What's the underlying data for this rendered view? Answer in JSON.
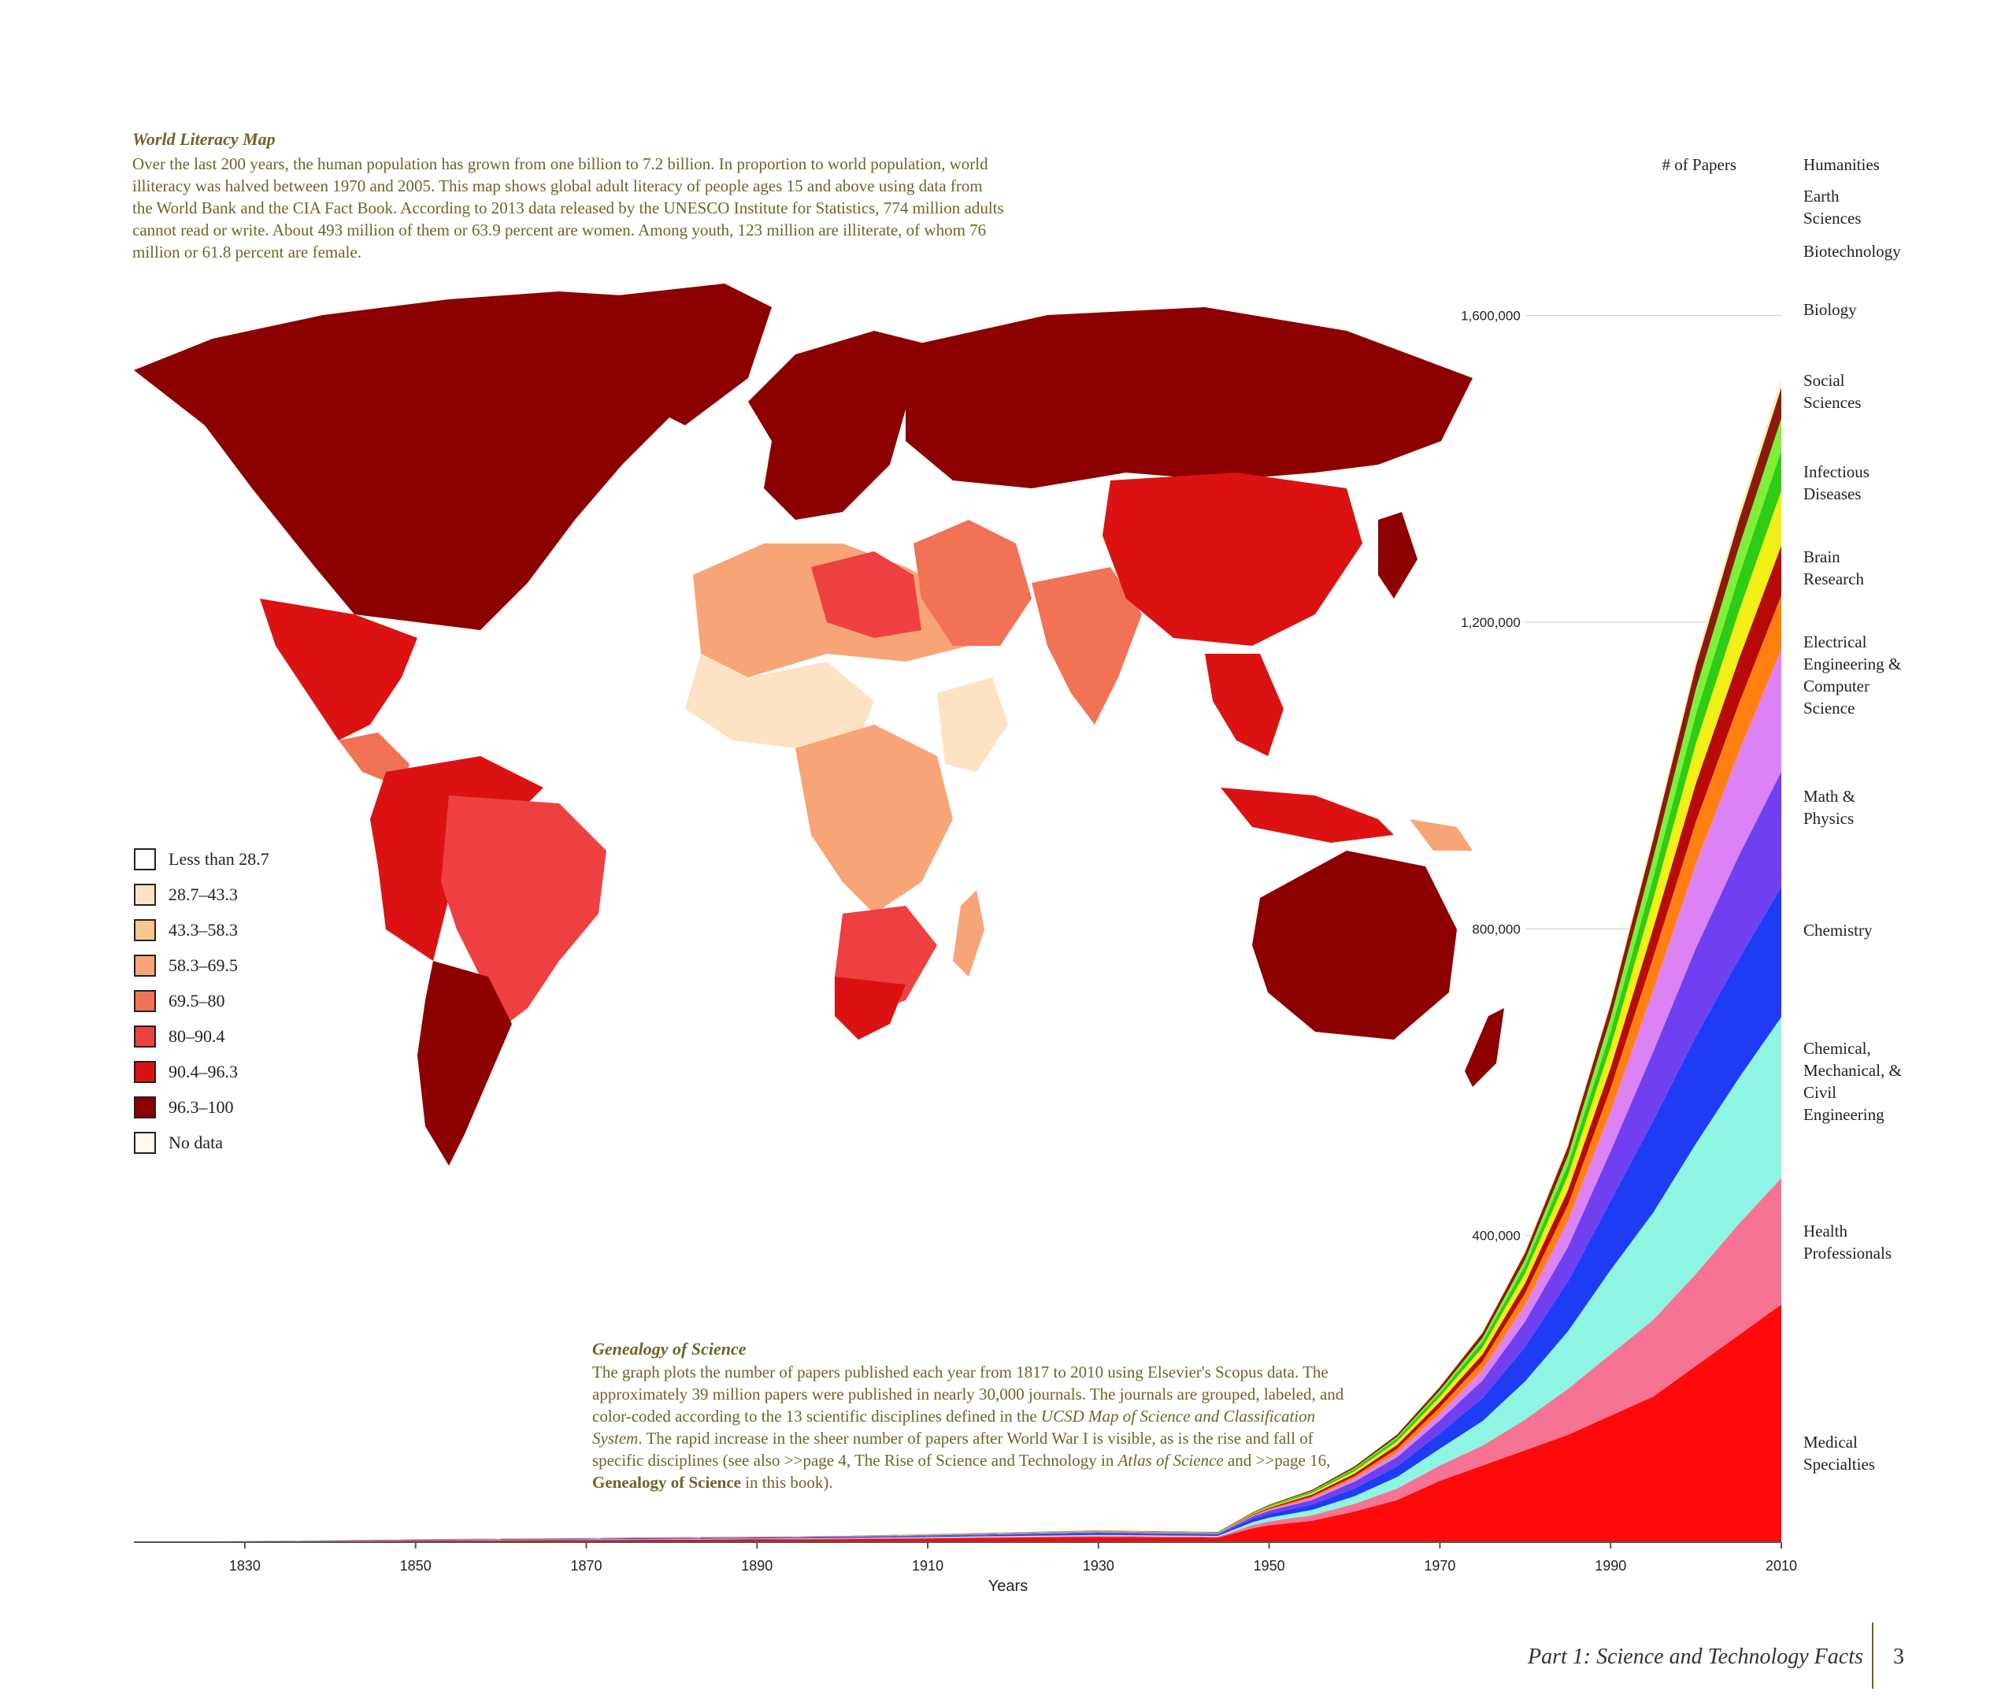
{
  "map": {
    "title": "World Literacy Map",
    "description": "Over the last 200 years, the human population has grown from one billion to 7.2 billion. In proportion to world population, world illiteracy was halved between 1970 and 2005. This map shows global adult literacy of people ages 15 and above using data from the World Bank and the CIA Fact Book. According to 2013 data released by the UNESCO Institute for Statistics, 774 million adults cannot read or write. About 493 million of them or 63.9 percent are women. Among youth, 123 million are illiterate, of whom 76 million or 61.8 percent are female.",
    "legend": [
      {
        "label": "Less than 28.7",
        "color": "#ffffff"
      },
      {
        "label": "28.7–43.3",
        "color": "#fde3c3"
      },
      {
        "label": "43.3–58.3",
        "color": "#fbc58f"
      },
      {
        "label": "58.3–69.5",
        "color": "#f7a476"
      },
      {
        "label": "69.5–80",
        "color": "#f27255"
      },
      {
        "label": "80–90.4",
        "color": "#ee4040"
      },
      {
        "label": "90.4–96.3",
        "color": "#dc1212"
      },
      {
        "label": "96.3–100",
        "color": "#8c0000"
      },
      {
        "label": "No data",
        "color": "#fffbe6"
      }
    ]
  },
  "genealogy": {
    "title": "Genealogy of Science",
    "desc_1": "The graph plots the number of papers published each year from 1817 to 2010 using Elsevier's Scopus data. The approximately 39 million papers were published in nearly 30,000 journals. The journals are grouped, labeled, and color-coded according to the 13 scientific disciplines defined in the ",
    "desc_2": "UCSD Map of Science and Classification System",
    "desc_3": ". The rapid increase in the sheer number of papers after World War I is visible, as is the rise and fall of specific disciplines (see also >>page 4, The Rise of Science and Technology in ",
    "desc_4": "Atlas of Science",
    "desc_5": " and >>page 16, ",
    "desc_6": "Genealogy of Science",
    "desc_7": " in this book)."
  },
  "chart_data": {
    "type": "area",
    "stacked": true,
    "ylabel": "# of Papers",
    "xlabel": "Years",
    "xlim": [
      1817,
      2010
    ],
    "ylim": [
      0,
      1800000
    ],
    "x_ticks": [
      1830,
      1850,
      1870,
      1890,
      1910,
      1930,
      1950,
      1970,
      1990,
      2010
    ],
    "y_ticks": [
      400000,
      800000,
      1200000,
      1600000
    ],
    "y_tick_labels": [
      "400,000",
      "800,000",
      "1,200,000",
      "1,600,000"
    ],
    "x": [
      1817,
      1850,
      1900,
      1930,
      1944,
      1948,
      1950,
      1955,
      1960,
      1965,
      1970,
      1975,
      1980,
      1985,
      1990,
      1995,
      2000,
      2005,
      2010
    ],
    "series": [
      {
        "name": "Medical Specialties",
        "color": "#ff0a0a",
        "values": [
          0,
          2000,
          4000,
          7000,
          6000,
          18000,
          22000,
          28000,
          40000,
          55000,
          80000,
          100000,
          120000,
          140000,
          165000,
          190000,
          230000,
          270000,
          310000
        ]
      },
      {
        "name": "Health Professionals",
        "color": "#f77394",
        "values": [
          0,
          300,
          600,
          1000,
          1000,
          4000,
          5000,
          7000,
          10000,
          15000,
          20000,
          26000,
          40000,
          60000,
          80000,
          100000,
          120000,
          145000,
          165000
        ]
      },
      {
        "name": "Chemical, Mechanical, & Civil Engineering",
        "color": "#8ff5e3",
        "values": [
          0,
          300,
          700,
          1500,
          1200,
          4000,
          5000,
          7000,
          10000,
          15000,
          22000,
          32000,
          50000,
          75000,
          110000,
          140000,
          170000,
          190000,
          210000
        ]
      },
      {
        "name": "Chemistry",
        "color": "#1f3cf5",
        "values": [
          0,
          400,
          900,
          1800,
          1500,
          4000,
          5000,
          7000,
          10000,
          14000,
          20000,
          30000,
          45000,
          65000,
          90000,
          120000,
          140000,
          155000,
          170000
        ]
      },
      {
        "name": "Math & Physics",
        "color": "#7040f0",
        "values": [
          0,
          300,
          700,
          1500,
          1200,
          3000,
          4000,
          6000,
          9000,
          12000,
          17000,
          23000,
          33000,
          45000,
          65000,
          90000,
          115000,
          135000,
          150000
        ]
      },
      {
        "name": "Electrical Engineering & Computer Science",
        "color": "#dd82f5",
        "values": [
          0,
          100,
          200,
          500,
          400,
          1000,
          1500,
          2500,
          4000,
          6000,
          9000,
          14000,
          22000,
          34000,
          52000,
          80000,
          110000,
          135000,
          160000
        ]
      },
      {
        "name": "Brain Research",
        "color": "#ff8010",
        "values": [
          0,
          50,
          100,
          300,
          300,
          800,
          1000,
          2000,
          3000,
          5000,
          8000,
          11000,
          15000,
          21000,
          30000,
          43000,
          55000,
          63000,
          70000
        ]
      },
      {
        "name": "Infectious Diseases",
        "color": "#b80a0a",
        "values": [
          0,
          100,
          200,
          400,
          400,
          1000,
          1500,
          2500,
          3500,
          5000,
          7000,
          9000,
          13000,
          19000,
          27000,
          38000,
          50000,
          58000,
          65000
        ]
      },
      {
        "name": "Social Sciences",
        "color": "#f2f016",
        "values": [
          0,
          50,
          150,
          300,
          300,
          800,
          1000,
          1800,
          3000,
          4500,
          6500,
          9000,
          13000,
          19000,
          27000,
          38000,
          52000,
          62000,
          72000
        ]
      },
      {
        "name": "Biology",
        "color": "#2ecc14",
        "values": [
          0,
          100,
          250,
          500,
          500,
          1000,
          1500,
          2200,
          3000,
          4000,
          5500,
          7500,
          10000,
          14000,
          20000,
          28000,
          38000,
          46000,
          52000
        ]
      },
      {
        "name": "Biotechnology",
        "color": "#7df03a",
        "values": [
          0,
          0,
          50,
          100,
          100,
          300,
          400,
          700,
          1200,
          2000,
          3000,
          5000,
          8000,
          12000,
          18000,
          26000,
          33000,
          38000,
          42000
        ]
      },
      {
        "name": "Earth Sciences",
        "color": "#8c1a0a",
        "values": [
          0,
          100,
          200,
          400,
          400,
          800,
          1000,
          1500,
          2200,
          3000,
          4500,
          6500,
          9000,
          12000,
          17000,
          24000,
          30000,
          35000,
          40000
        ]
      },
      {
        "name": "Humanities",
        "color": "#f5f0b0",
        "values": [
          0,
          50,
          100,
          150,
          150,
          300,
          400,
          600,
          800,
          1000,
          1500,
          2000,
          3000,
          4000,
          5000,
          6500,
          8000,
          10000,
          11000
        ]
      }
    ],
    "labels": [
      {
        "text": "Humanities",
        "key": "humanities"
      },
      {
        "text": "Earth Sciences",
        "key": "earth"
      },
      {
        "text": "Biotechnology",
        "key": "biotech"
      },
      {
        "text": "Biology",
        "key": "biology"
      },
      {
        "text": "Social Sciences",
        "key": "social"
      },
      {
        "text": "Infectious Diseases",
        "key": "infectious"
      },
      {
        "text": "Brain Research",
        "key": "brain"
      },
      {
        "text": "Electrical Engineering & Computer Science",
        "key": "eecs"
      },
      {
        "text": "Math & Physics",
        "key": "math"
      },
      {
        "text": "Chemistry",
        "key": "chem"
      },
      {
        "text": "Chemical, Mechanical, & Civil Engineering",
        "key": "cme"
      },
      {
        "text": "Health Professionals",
        "key": "health"
      },
      {
        "text": "Medical Specialties",
        "key": "medical"
      }
    ]
  },
  "footer": {
    "section": "Part 1: Science and Technology Facts",
    "page_number": "3"
  }
}
